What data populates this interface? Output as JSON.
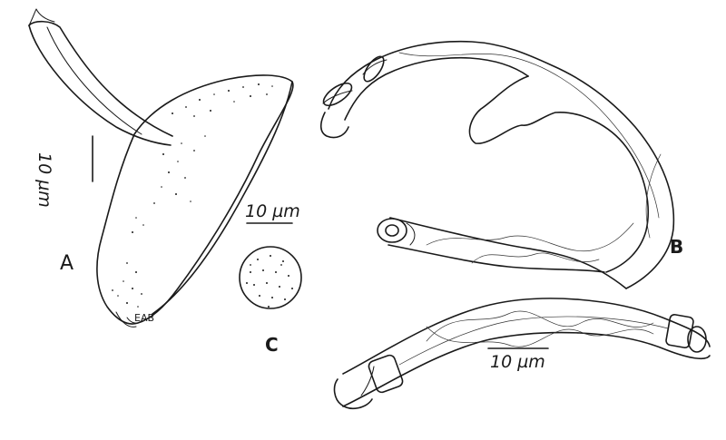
{
  "panels": {
    "a": {
      "letter": "A"
    },
    "b": {
      "letter": "B"
    },
    "c": {
      "letter": "C"
    }
  },
  "scale_bars": {
    "panel_a": "10 µm",
    "panel_c": "10 µm",
    "panel_bottom": "10 µm"
  },
  "signature": "EAB",
  "colors": {
    "ink": "#1a1a1a",
    "background": "#ffffff"
  }
}
